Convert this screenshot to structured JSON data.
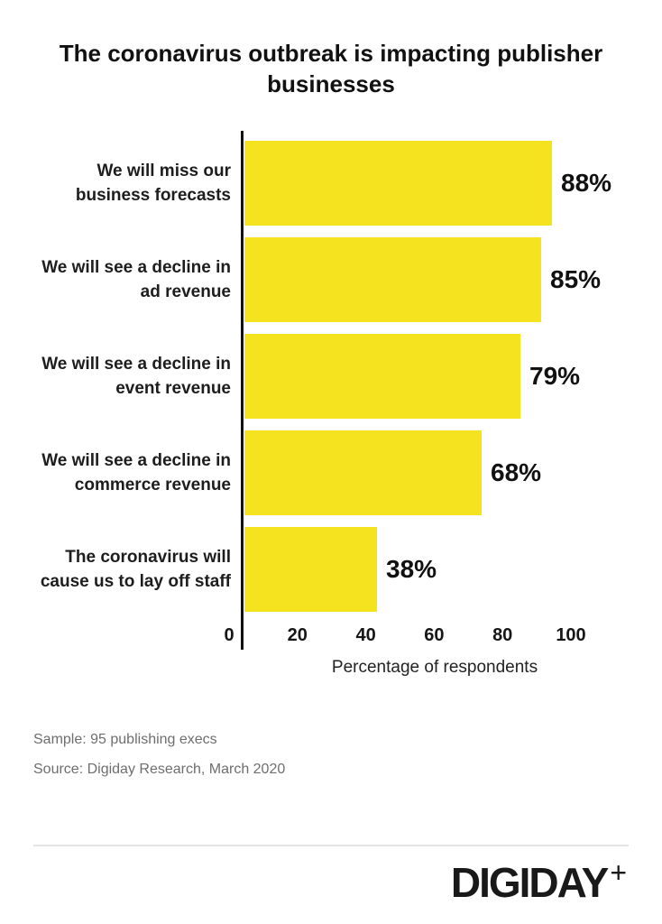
{
  "title": "The coronavirus outbreak is impacting publisher businesses",
  "title_lines": [
    "The coronavirus outbreak is impacting publisher",
    "businesses"
  ],
  "chart_data": {
    "type": "bar",
    "orientation": "horizontal",
    "title": "The coronavirus outbreak is impacting publisher businesses",
    "categories": [
      [
        "We will miss our",
        "business forecasts"
      ],
      [
        "We will see a decline in",
        "ad revenue"
      ],
      [
        "We will see a decline in",
        "event revenue"
      ],
      [
        "We will see a decline in",
        "commerce revenue"
      ],
      [
        "The coronavirus will",
        "cause us to lay off staff"
      ]
    ],
    "values": [
      88,
      85,
      79,
      68,
      38
    ],
    "value_labels": [
      "88%",
      "85%",
      "79%",
      "68%",
      "38%"
    ],
    "xlabel": "Percentage of respondents",
    "ylabel": "",
    "xlim": [
      0,
      100
    ],
    "xticks": [
      0,
      20,
      40,
      60,
      80,
      100
    ],
    "grid": false,
    "legend": false,
    "bar_color": "#F5E320",
    "axis_color": "#111111",
    "value_label_color": "#111111"
  },
  "notes": {
    "sample": "Sample: 95 publishing execs",
    "source": "Source: Digiday Research, March 2020"
  },
  "footer": {
    "brand": "DIGIDAY",
    "brand_plus": "+"
  }
}
